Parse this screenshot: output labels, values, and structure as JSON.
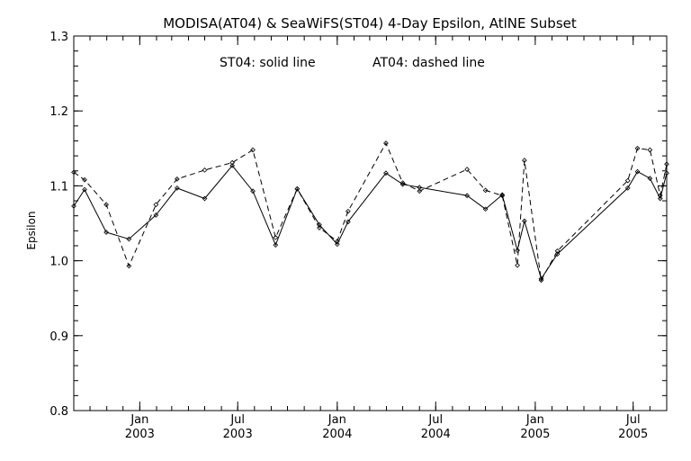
{
  "chart_data": {
    "type": "line",
    "title": "MODISA(AT04) & SeaWiFS(ST04) 4-Day Epsilon, AtlNE Subset",
    "annotation_left": "ST04: solid line",
    "annotation_right": "AT04: dashed line",
    "ylabel": "Epsilon",
    "xlabel": "",
    "ylim": [
      0.8,
      1.3
    ],
    "xlim": [
      "2002-09-01",
      "2005-09-01"
    ],
    "y_ticks": [
      "0.8",
      "0.9",
      "1.0",
      "1.1",
      "1.2",
      "1.3"
    ],
    "x_ticks": [
      {
        "month": "Jan",
        "year": "2003",
        "date": "2003-01-01"
      },
      {
        "month": "Jul",
        "year": "2003",
        "date": "2003-07-01"
      },
      {
        "month": "Jan",
        "year": "2004",
        "date": "2004-01-01"
      },
      {
        "month": "Jul",
        "year": "2004",
        "date": "2004-07-01"
      },
      {
        "month": "Jan",
        "year": "2005",
        "date": "2005-01-01"
      },
      {
        "month": "Jul",
        "year": "2005",
        "date": "2005-07-01"
      }
    ],
    "grid": false,
    "series": [
      {
        "name": "ST04",
        "style": "solid",
        "x": [
          "2002-09-01",
          "2002-09-21",
          "2002-10-31",
          "2002-12-12",
          "2003-01-31",
          "2003-03-11",
          "2003-05-01",
          "2003-06-21",
          "2003-07-29",
          "2003-09-09",
          "2003-10-19",
          "2003-11-29",
          "2004-01-01",
          "2004-01-21",
          "2004-03-31",
          "2004-05-01",
          "2004-06-01",
          "2004-08-28",
          "2004-10-01",
          "2004-11-01",
          "2004-11-29",
          "2004-12-12",
          "2005-01-12",
          "2005-02-11",
          "2005-06-21",
          "2005-07-09",
          "2005-08-01",
          "2005-08-20",
          "2005-09-01"
        ],
        "values": [
          1.073,
          1.095,
          1.038,
          1.029,
          1.061,
          1.097,
          1.083,
          1.127,
          1.093,
          1.021,
          1.096,
          1.048,
          1.022,
          1.052,
          1.117,
          1.102,
          1.098,
          1.087,
          1.069,
          1.088,
          1.014,
          1.053,
          0.976,
          1.009,
          1.097,
          1.119,
          1.11,
          1.083,
          1.117
        ]
      },
      {
        "name": "AT04",
        "style": "dashed",
        "x": [
          "2002-09-01",
          "2002-09-21",
          "2002-10-31",
          "2002-12-12",
          "2003-01-31",
          "2003-03-11",
          "2003-05-01",
          "2003-06-21",
          "2003-07-29",
          "2003-09-09",
          "2003-10-19",
          "2003-11-29",
          "2004-01-01",
          "2004-01-21",
          "2004-03-31",
          "2004-05-01",
          "2004-06-01",
          "2004-08-28",
          "2004-10-01",
          "2004-11-01",
          "2004-11-29",
          "2004-12-12",
          "2005-01-12",
          "2005-02-11",
          "2005-06-21",
          "2005-07-09",
          "2005-08-01",
          "2005-08-20",
          "2005-09-01"
        ],
        "values": [
          1.118,
          1.108,
          1.075,
          0.993,
          1.075,
          1.109,
          1.121,
          1.131,
          1.148,
          1.031,
          1.096,
          1.044,
          1.026,
          1.066,
          1.157,
          1.104,
          1.093,
          1.122,
          1.094,
          1.087,
          0.994,
          1.134,
          0.974,
          1.013,
          1.107,
          1.15,
          1.148,
          1.087,
          1.129
        ]
      }
    ]
  }
}
